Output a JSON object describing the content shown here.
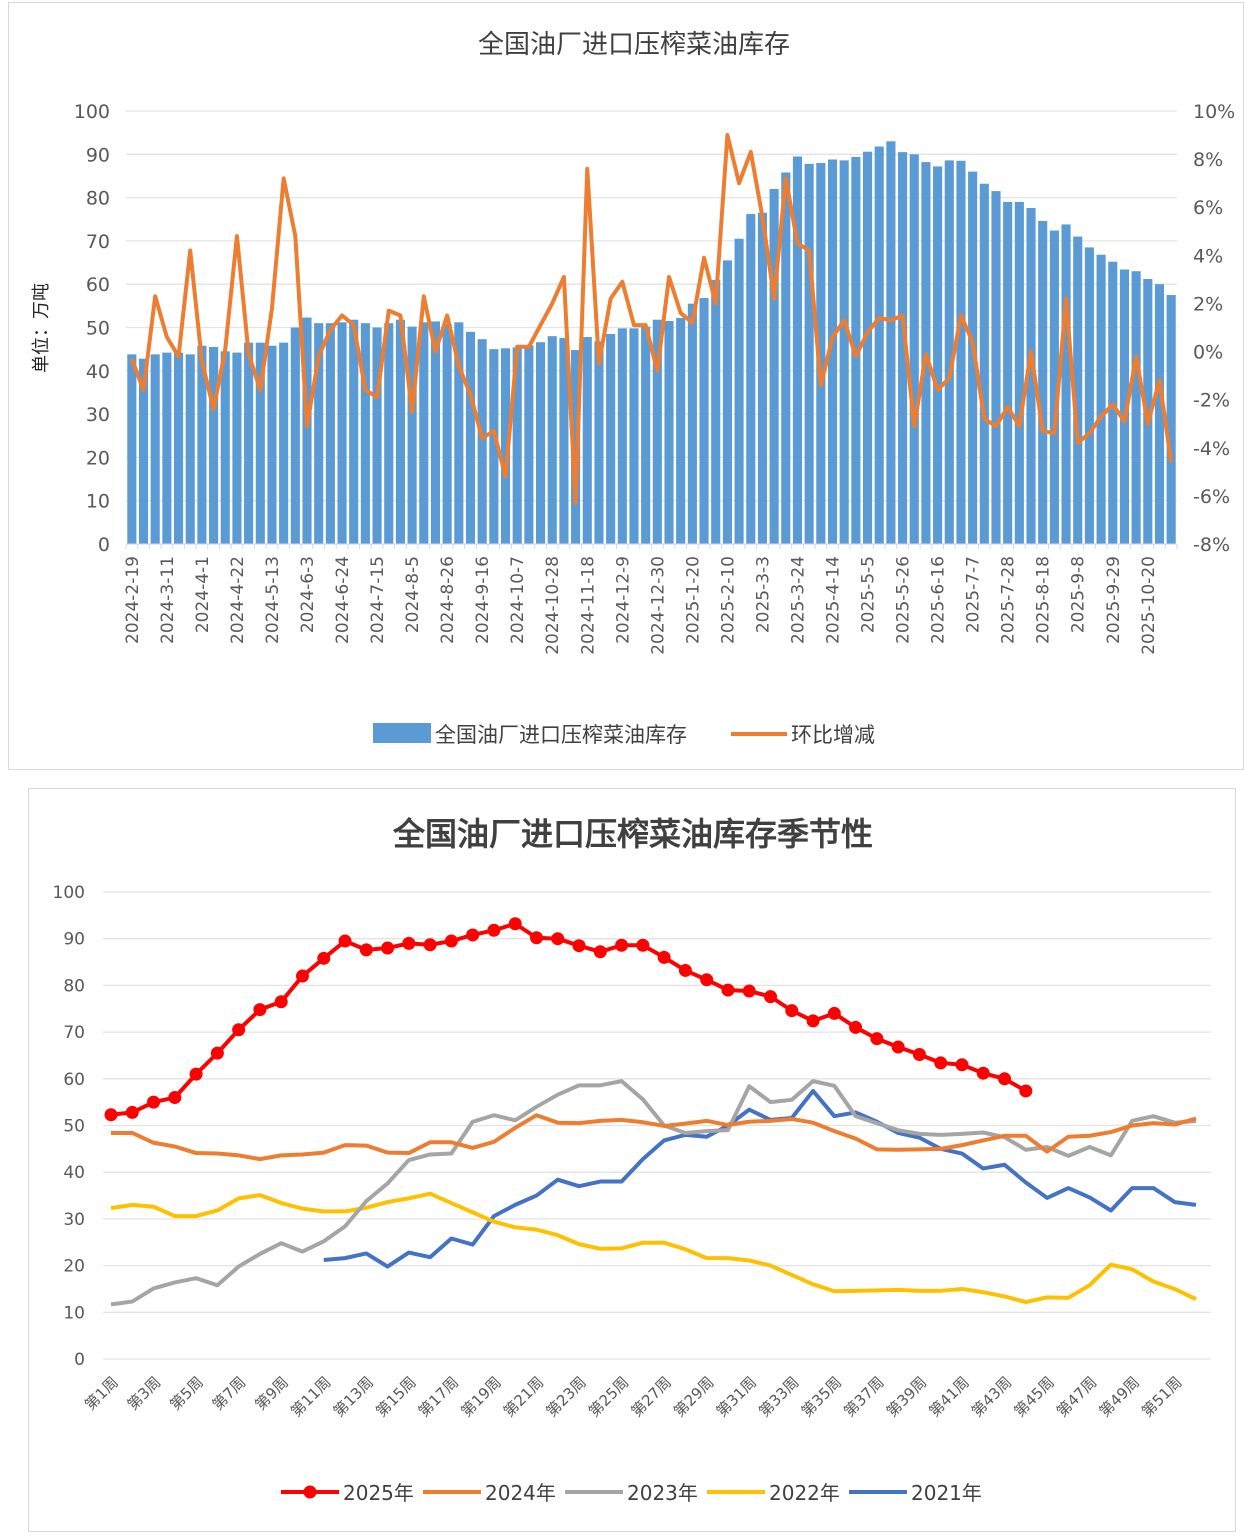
{
  "chart_data": [
    {
      "type": "bar",
      "title": "全国油厂进口压榨菜油库存",
      "ylabel": "单位：万吨",
      "ylim": [
        0,
        100
      ],
      "yticks": [
        "0",
        "10",
        "20",
        "30",
        "40",
        "50",
        "60",
        "70",
        "80",
        "90",
        "100"
      ],
      "y2lim": [
        -8,
        10
      ],
      "y2ticks": [
        "-8%",
        "-6%",
        "-4%",
        "-2%",
        "0%",
        "2%",
        "4%",
        "6%",
        "8%",
        "10%"
      ],
      "grid": true,
      "legend_position": "bottom",
      "x_tick_labels": [
        "2024-2-19",
        "2024-3-11",
        "2024-4-1",
        "2024-4-22",
        "2024-5-13",
        "2024-6-3",
        "2024-6-24",
        "2024-7-15",
        "2024-8-5",
        "2024-8-26",
        "2024-9-16",
        "2024-10-7",
        "2024-10-28",
        "2024-11-18",
        "2024-12-9",
        "2024-12-30",
        "2025-1-20",
        "2025-2-10",
        "2025-3-3",
        "2025-3-24",
        "2025-4-14",
        "2025-5-5",
        "2025-5-26",
        "2025-6-16",
        "2025-7-7",
        "2025-7-28",
        "2025-8-18",
        "2025-9-8",
        "2025-9-29",
        "2025-10-20"
      ],
      "x_tick_every": 3,
      "series": [
        {
          "name": "全国油厂进口压榨菜油库存",
          "type": "bar",
          "axis": "left",
          "color": "#5B9BD5",
          "values": [
            43.8,
            42.8,
            43.8,
            44.2,
            44.2,
            43.8,
            45.8,
            45.5,
            44.5,
            44.2,
            46.5,
            46.5,
            45.8,
            46.5,
            50.0,
            52.3,
            51.0,
            51.0,
            51.2,
            51.8,
            51.0,
            50.0,
            51.0,
            51.8,
            50.2,
            51.2,
            51.4,
            50.8,
            51.2,
            49.0,
            47.3,
            45.0,
            45.2,
            45.4,
            45.9,
            46.6,
            48.0,
            47.6,
            44.8,
            47.8,
            46.8,
            48.5,
            49.8,
            49.8,
            50.2,
            51.8,
            51.5,
            52.2,
            55.5,
            56.8,
            61.0,
            65.5,
            70.5,
            76.2,
            76.5,
            82.0,
            85.8,
            89.5,
            87.8,
            88.0,
            88.8,
            88.6,
            89.4,
            90.6,
            91.8,
            93.0,
            90.5,
            90.0,
            88.2,
            87.2,
            88.6,
            88.5,
            86.0,
            83.2,
            81.5,
            79.0,
            79.0,
            77.6,
            74.6,
            72.4,
            73.8,
            71.0,
            68.5,
            66.8,
            65.2,
            63.4,
            63.0,
            61.2,
            60.0,
            57.5
          ]
        },
        {
          "name": "环比增减",
          "type": "line",
          "axis": "right",
          "color": "#ED7D31",
          "values": [
            -0.3,
            -1.6,
            2.3,
            0.6,
            -0.2,
            4.2,
            -0.4,
            -2.4,
            0.1,
            4.8,
            -0.1,
            -1.6,
            1.8,
            7.2,
            4.8,
            -3.1,
            -0.2,
            0.9,
            1.5,
            1.1,
            -1.6,
            -1.9,
            1.7,
            1.5,
            -2.5,
            2.3,
            0.0,
            1.5,
            -0.6,
            -1.8,
            -3.6,
            -3.3,
            -5.2,
            0.2,
            0.2,
            1.1,
            2.0,
            3.1,
            -6.3,
            7.6,
            -0.5,
            2.2,
            2.9,
            1.1,
            1.1,
            -0.8,
            3.1,
            1.6,
            1.2,
            3.9,
            2.0,
            9.0,
            7.0,
            8.3,
            5.6,
            2.2,
            7.2,
            4.5,
            4.2,
            -1.4,
            0.6,
            1.3,
            -0.2,
            0.8,
            1.4,
            1.3,
            1.5,
            -3.1,
            -0.1,
            -1.6,
            -1.1,
            1.5,
            0.4,
            -2.8,
            -3.1,
            -2.3,
            -3.1,
            0.0,
            -3.3,
            -3.4,
            2.2,
            -3.8,
            -3.4,
            -2.7,
            -2.2,
            -2.9,
            -0.2,
            -3.0,
            -1.2,
            -4.6
          ]
        }
      ]
    },
    {
      "type": "line",
      "title": "全国油厂进口压榨菜油库存季节性",
      "ylim": [
        0,
        100
      ],
      "yticks": [
        "0",
        "10",
        "20",
        "30",
        "40",
        "50",
        "60",
        "70",
        "80",
        "90",
        "100"
      ],
      "grid": true,
      "legend_position": "bottom",
      "x": [
        1,
        2,
        3,
        4,
        5,
        6,
        7,
        8,
        9,
        10,
        11,
        12,
        13,
        14,
        15,
        16,
        17,
        18,
        19,
        20,
        21,
        22,
        23,
        24,
        25,
        26,
        27,
        28,
        29,
        30,
        31,
        32,
        33,
        34,
        35,
        36,
        37,
        38,
        39,
        40,
        41,
        42,
        43,
        44,
        45,
        46,
        47,
        48,
        49,
        50,
        51,
        52
      ],
      "x_tick_labels": [
        "第1周",
        "第3周",
        "第5周",
        "第7周",
        "第9周",
        "第11周",
        "第13周",
        "第15周",
        "第17周",
        "第19周",
        "第21周",
        "第23周",
        "第25周",
        "第27周",
        "第29周",
        "第31周",
        "第33周",
        "第35周",
        "第37周",
        "第39周",
        "第41周",
        "第43周",
        "第45周",
        "第47周",
        "第49周",
        "第51周"
      ],
      "series": [
        {
          "name": "2025年",
          "color": "#FF0000",
          "markers": true,
          "values": [
            52.3,
            52.8,
            55.0,
            56.0,
            61.0,
            65.5,
            70.5,
            74.8,
            76.5,
            82.0,
            85.8,
            89.5,
            87.6,
            88.0,
            89.0,
            88.7,
            89.5,
            90.8,
            91.8,
            93.2,
            90.2,
            90.0,
            88.5,
            87.2,
            88.6,
            88.6,
            86.0,
            83.2,
            81.2,
            79.0,
            78.8,
            77.6,
            74.6,
            72.4,
            74.0,
            71.0,
            68.6,
            66.8,
            65.2,
            63.4,
            63.0,
            61.2,
            60.0,
            57.4,
            null,
            null,
            null,
            null,
            null,
            null,
            null,
            null
          ]
        },
        {
          "name": "2024年",
          "color": "#ED7D31",
          "markers": false,
          "values": [
            48.4,
            48.4,
            46.3,
            45.5,
            44.1,
            44.0,
            43.6,
            42.8,
            43.6,
            43.8,
            44.2,
            45.8,
            45.7,
            44.2,
            44.1,
            46.4,
            46.4,
            45.2,
            46.5,
            49.5,
            52.2,
            50.6,
            50.5,
            51.0,
            51.2,
            50.7,
            49.9,
            50.4,
            51.0,
            50.1,
            50.8,
            51.0,
            51.4,
            50.6,
            48.8,
            47.2,
            44.9,
            44.8,
            44.9,
            45.0,
            45.8,
            46.8,
            47.8,
            47.8,
            44.4,
            47.6,
            47.8,
            48.6,
            50.0,
            50.5,
            50.2,
            51.5
          ]
        },
        {
          "name": "2023年",
          "color": "#A5A5A5",
          "markers": false,
          "values": [
            11.7,
            12.3,
            15.1,
            16.4,
            17.3,
            15.8,
            19.8,
            22.5,
            24.8,
            23.0,
            25.2,
            28.4,
            33.8,
            37.6,
            42.6,
            43.8,
            44.0,
            50.8,
            52.2,
            51.1,
            54.0,
            56.6,
            58.6,
            58.6,
            59.5,
            55.6,
            50.0,
            48.4,
            48.8,
            49.0,
            58.4,
            55.0,
            55.5,
            59.5,
            58.5,
            52.0,
            50.5,
            49.0,
            48.2,
            48.0,
            48.2,
            48.5,
            47.5,
            44.8,
            45.4,
            43.5,
            45.4,
            43.6,
            51.0,
            52.0,
            50.6,
            51.0
          ]
        },
        {
          "name": "2022年",
          "color": "#FFC000",
          "markers": false,
          "values": [
            32.3,
            33.0,
            32.6,
            30.6,
            30.6,
            31.8,
            34.4,
            35.1,
            33.4,
            32.2,
            31.6,
            31.6,
            32.4,
            33.6,
            34.4,
            35.4,
            33.4,
            31.4,
            29.4,
            28.2,
            27.7,
            26.5,
            24.6,
            23.6,
            23.7,
            24.9,
            24.9,
            23.5,
            21.6,
            21.6,
            21.1,
            20.0,
            18.0,
            16.0,
            14.5,
            14.6,
            14.7,
            14.8,
            14.6,
            14.6,
            15.0,
            14.3,
            13.4,
            12.2,
            13.2,
            13.1,
            15.8,
            20.2,
            19.2,
            16.6,
            15.0,
            12.8
          ]
        },
        {
          "name": "2021年",
          "color": "#4472C4",
          "markers": false,
          "values": [
            null,
            null,
            null,
            null,
            null,
            null,
            null,
            null,
            null,
            null,
            21.2,
            21.6,
            22.6,
            19.8,
            22.8,
            21.8,
            25.8,
            24.5,
            30.6,
            33.0,
            35.0,
            38.4,
            37.0,
            38.0,
            38.0,
            42.8,
            46.8,
            48.0,
            47.6,
            50.0,
            53.4,
            51.2,
            51.6,
            57.4,
            52.0,
            52.8,
            50.8,
            48.4,
            47.4,
            45.0,
            44.0,
            40.8,
            41.6,
            37.8,
            34.5,
            36.6,
            34.6,
            31.8,
            36.6,
            36.6,
            33.6,
            33.0
          ]
        }
      ]
    }
  ]
}
